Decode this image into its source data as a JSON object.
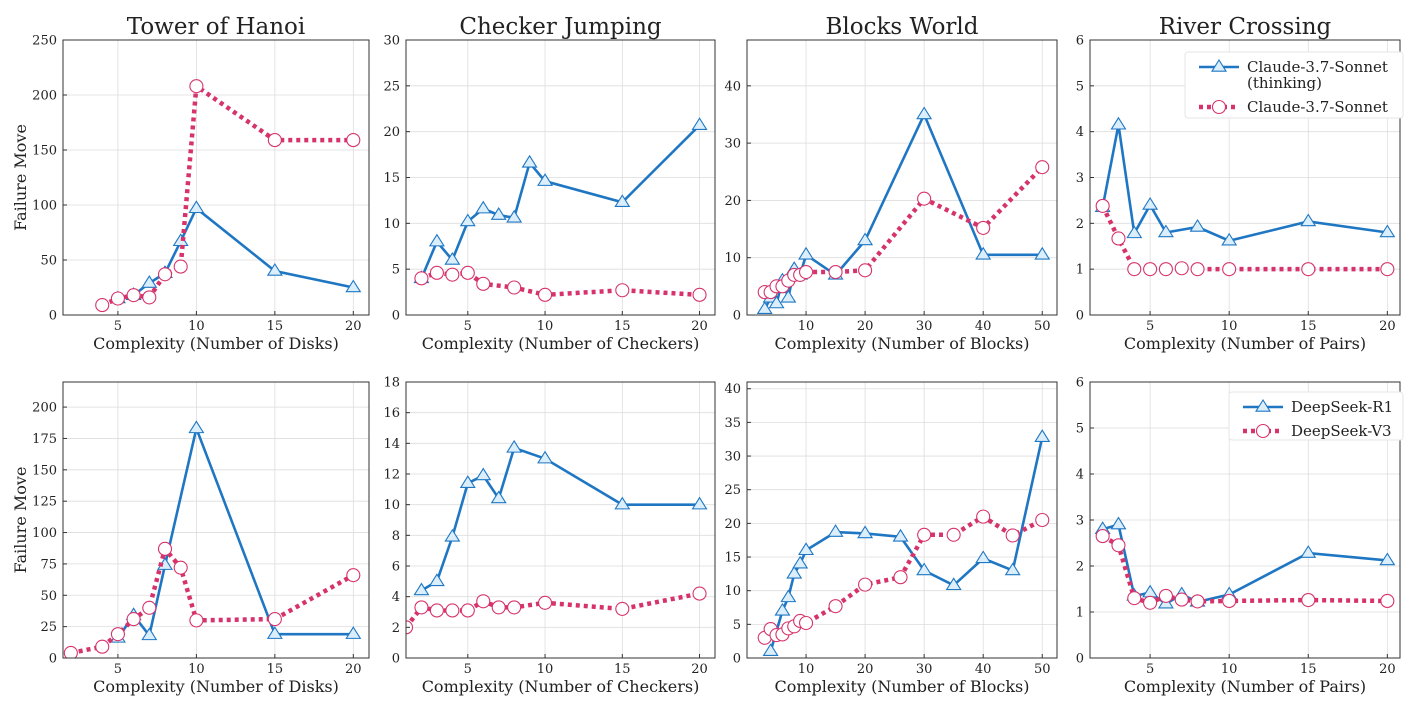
{
  "chart_data": [
    {
      "type": "line",
      "title": "Tower of Hanoi",
      "xlabel": "Complexity (Number of Disks)",
      "ylabel": "Failure Move",
      "xlim": [
        1.5,
        21
      ],
      "ylim": [
        0,
        250
      ],
      "xticks": [
        5,
        10,
        15,
        20
      ],
      "yticks": [
        0,
        50,
        100,
        150,
        200,
        250
      ],
      "grid": true,
      "series": [
        {
          "name": "Claude-3.7-Sonnet (thinking)",
          "x": [
            5,
            6,
            7,
            8,
            9,
            10,
            15,
            20
          ],
          "y": [
            15,
            18,
            29,
            38,
            67,
            97,
            40,
            25
          ]
        },
        {
          "name": "Claude-3.7-Sonnet",
          "x": [
            4,
            5,
            6,
            7,
            8,
            9,
            10,
            15,
            20
          ],
          "y": [
            9,
            15,
            18,
            16,
            37,
            44,
            208,
            159,
            159
          ]
        }
      ]
    },
    {
      "type": "line",
      "title": "Checker Jumping",
      "xlabel": "Complexity (Number of Checkers)",
      "ylabel": "",
      "xlim": [
        1,
        21
      ],
      "ylim": [
        0,
        30
      ],
      "xticks": [
        5,
        10,
        15,
        20
      ],
      "yticks": [
        0,
        5,
        10,
        15,
        20,
        25,
        30
      ],
      "grid": true,
      "series": [
        {
          "name": "Claude-3.7-Sonnet (thinking)",
          "x": [
            2,
            3,
            4,
            5,
            6,
            7,
            8,
            9,
            10,
            15,
            20
          ],
          "y": [
            4.0,
            8.0,
            6.0,
            10.2,
            11.6,
            10.9,
            10.6,
            16.6,
            14.6,
            12.3,
            20.7
          ]
        },
        {
          "name": "Claude-3.7-Sonnet",
          "x": [
            2,
            3,
            4,
            5,
            6,
            8,
            10,
            15,
            20
          ],
          "y": [
            4.0,
            4.6,
            4.4,
            4.6,
            3.4,
            3.0,
            2.2,
            2.7,
            2.2
          ]
        }
      ]
    },
    {
      "type": "line",
      "title": "Blocks World",
      "xlabel": "Complexity (Number of Blocks)",
      "ylabel": "",
      "xlim": [
        0,
        52.5
      ],
      "ylim": [
        0,
        48
      ],
      "xticks": [
        10,
        20,
        30,
        40,
        50
      ],
      "yticks": [
        0,
        10,
        20,
        30,
        40
      ],
      "grid": true,
      "series": [
        {
          "name": "Claude-3.7-Sonnet (thinking)",
          "x": [
            3,
            4,
            5,
            6,
            7,
            8,
            9,
            10,
            15,
            20,
            30,
            40,
            50
          ],
          "y": [
            1,
            3,
            2,
            6,
            3,
            8,
            7,
            10.5,
            7,
            13,
            35,
            10.5,
            10.5
          ]
        },
        {
          "name": "Claude-3.7-Sonnet",
          "x": [
            3,
            4,
            5,
            6,
            7,
            8,
            9,
            10,
            15,
            20,
            30,
            40,
            50
          ],
          "y": [
            4,
            4,
            5,
            5,
            6,
            7,
            7,
            7.5,
            7.5,
            7.8,
            20.3,
            15.2,
            25.8
          ]
        }
      ]
    },
    {
      "type": "line",
      "title": "River Crossing",
      "xlabel": "Complexity (Number of Pairs)",
      "ylabel": "",
      "xlim": [
        1.2,
        20.8
      ],
      "ylim": [
        0,
        6
      ],
      "xticks": [
        5,
        10,
        15,
        20
      ],
      "yticks": [
        0,
        1,
        2,
        3,
        4,
        5,
        6
      ],
      "grid": true,
      "legend": "top-right",
      "series": [
        {
          "name": "Claude-3.7-Sonnet (thinking)",
          "x": [
            2,
            3,
            4,
            5,
            6,
            8,
            10,
            15,
            20
          ],
          "y": [
            2.35,
            4.15,
            1.78,
            2.4,
            1.8,
            1.92,
            1.62,
            2.04,
            1.8
          ]
        },
        {
          "name": "Claude-3.7-Sonnet",
          "x": [
            2,
            3,
            4,
            5,
            6,
            7,
            8,
            10,
            15,
            20
          ],
          "y": [
            2.38,
            1.67,
            1.0,
            1.0,
            1.0,
            1.02,
            1.0,
            1.0,
            1.0,
            1.0
          ]
        }
      ]
    },
    {
      "type": "line",
      "title": "",
      "xlabel": "Complexity (Number of Disks)",
      "ylabel": "Failure Move",
      "xlim": [
        1.5,
        21
      ],
      "ylim": [
        0,
        220
      ],
      "xticks": [
        5,
        10,
        15,
        20
      ],
      "yticks": [
        0,
        25,
        50,
        75,
        100,
        125,
        150,
        175,
        200
      ],
      "grid": true,
      "series": [
        {
          "name": "DeepSeek-R1",
          "x": [
            5,
            6,
            7,
            8,
            10,
            15,
            20
          ],
          "y": [
            16,
            34,
            18,
            74,
            183,
            19,
            19
          ]
        },
        {
          "name": "DeepSeek-V3",
          "x": [
            2,
            4,
            5,
            6,
            7,
            8,
            9,
            10,
            15,
            20
          ],
          "y": [
            4,
            9,
            19,
            31,
            40,
            87,
            72,
            30,
            31,
            66
          ]
        }
      ]
    },
    {
      "type": "line",
      "title": "",
      "xlabel": "Complexity (Number of Checkers)",
      "ylabel": "",
      "xlim": [
        1,
        21
      ],
      "ylim": [
        0,
        18
      ],
      "xticks": [
        5,
        10,
        15,
        20
      ],
      "yticks": [
        0,
        2,
        4,
        6,
        8,
        10,
        12,
        14,
        16,
        18
      ],
      "grid": true,
      "series": [
        {
          "name": "DeepSeek-R1",
          "x": [
            2,
            3,
            4,
            5,
            6,
            7,
            8,
            10,
            15,
            20
          ],
          "y": [
            4.4,
            5.0,
            7.9,
            11.4,
            11.9,
            10.4,
            13.7,
            13.0,
            10.0,
            10.0
          ]
        },
        {
          "name": "DeepSeek-V3",
          "x": [
            1,
            2,
            3,
            4,
            5,
            6,
            7,
            8,
            10,
            15,
            20
          ],
          "y": [
            2.0,
            3.3,
            3.1,
            3.1,
            3.1,
            3.7,
            3.3,
            3.3,
            3.6,
            3.2,
            4.2
          ]
        }
      ]
    },
    {
      "type": "line",
      "title": "",
      "xlabel": "Complexity (Number of Blocks)",
      "ylabel": "",
      "xlim": [
        0,
        52.5
      ],
      "ylim": [
        0,
        41
      ],
      "xticks": [
        10,
        20,
        30,
        40,
        50
      ],
      "yticks": [
        0,
        5,
        10,
        15,
        20,
        25,
        30,
        35,
        40
      ],
      "grid": true,
      "series": [
        {
          "name": "DeepSeek-R1",
          "x": [
            4,
            6,
            7,
            8,
            9,
            10,
            15,
            20,
            26,
            30,
            35,
            40,
            45,
            50
          ],
          "y": [
            1,
            7,
            9,
            12.5,
            14,
            16,
            18.7,
            18.5,
            18,
            13,
            10.8,
            14.8,
            13,
            32.8
          ]
        },
        {
          "name": "DeepSeek-V3",
          "x": [
            3,
            4,
            5,
            6,
            7,
            8,
            9,
            10,
            15,
            20,
            26,
            30,
            35,
            40,
            45,
            50
          ],
          "y": [
            3,
            4.3,
            3.4,
            3.5,
            4.4,
            4.7,
            5.5,
            5.2,
            7.7,
            10.9,
            12,
            18.3,
            18.3,
            21,
            18.2,
            20.5
          ]
        }
      ]
    },
    {
      "type": "line",
      "title": "",
      "xlabel": "Complexity (Number of Pairs)",
      "ylabel": "",
      "xlim": [
        1.2,
        20.8
      ],
      "ylim": [
        0,
        6
      ],
      "xticks": [
        5,
        10,
        15,
        20
      ],
      "yticks": [
        0,
        1,
        2,
        3,
        4,
        5,
        6
      ],
      "grid": true,
      "legend": "top-right",
      "series": [
        {
          "name": "DeepSeek-R1",
          "x": [
            2,
            3,
            4,
            5,
            6,
            7,
            8,
            10,
            15,
            20
          ],
          "y": [
            2.8,
            2.9,
            1.35,
            1.42,
            1.18,
            1.38,
            1.22,
            1.38,
            2.28,
            2.12
          ]
        },
        {
          "name": "DeepSeek-V3",
          "x": [
            2,
            3,
            4,
            5,
            6,
            7,
            8,
            10,
            15,
            20
          ],
          "y": [
            2.65,
            2.45,
            1.3,
            1.2,
            1.35,
            1.27,
            1.23,
            1.24,
            1.26,
            1.24
          ]
        }
      ]
    }
  ],
  "legends": {
    "top": [
      {
        "lines": [
          "Claude-3.7-Sonnet",
          "(thinking)"
        ]
      },
      {
        "lines": [
          "Claude-3.7-Sonnet"
        ]
      }
    ],
    "bottom": [
      {
        "lines": [
          "DeepSeek-R1"
        ]
      },
      {
        "lines": [
          "DeepSeek-V3"
        ]
      }
    ]
  },
  "colors": {
    "blue": "#1f77c4",
    "pink": "#d6336c",
    "grid": "#dddddd"
  }
}
